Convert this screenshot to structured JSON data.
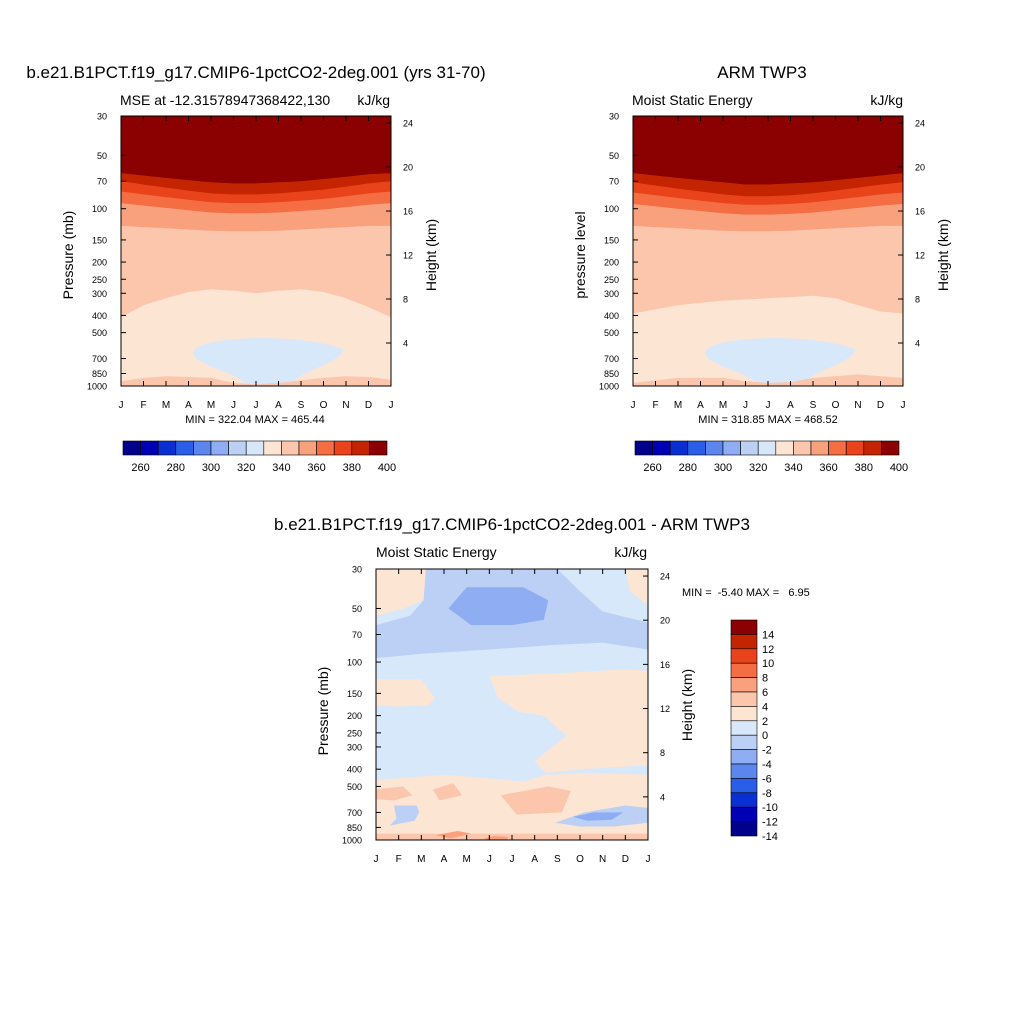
{
  "chart_data": [
    {
      "type": "heatmap",
      "id": "p1",
      "title": "b.e21.B1PCT.f19_g17.CMIP6-1pctCO2-2deg.001 (yrs 31-70)",
      "left_label": "MSE at -12.31578947368422,130",
      "right_label": "kJ/kg",
      "ylabel": "Pressure (mb)",
      "ylabel_right": "Height (km)",
      "minmax": "MIN = 322.04 MAX = 465.44",
      "x_ticks": [
        "J",
        "F",
        "M",
        "A",
        "M",
        "J",
        "J",
        "A",
        "S",
        "O",
        "N",
        "D",
        "J"
      ],
      "p_ticks": [
        "30",
        "50",
        "70",
        "100",
        "150",
        "200",
        "250",
        "300",
        "400",
        "500",
        "700",
        "850",
        "1000"
      ],
      "h_ticks": [
        "24",
        "20",
        "16",
        "12",
        "8",
        "4"
      ],
      "levels": [
        260,
        270,
        280,
        290,
        300,
        310,
        320,
        330,
        340,
        350,
        360,
        370,
        380,
        390,
        400
      ],
      "boundaries": [
        {
          "level": 320,
          "bottom": false,
          "p": [
            845,
            790,
            720,
            650,
            580,
            545,
            535,
            540,
            570,
            620,
            720,
            820,
            845
          ]
        },
        {
          "level": 330,
          "bottom": false,
          "p": [
            940,
            900,
            880,
            890,
            900,
            960,
            980,
            960,
            930,
            900,
            880,
            890,
            920
          ]
        },
        {
          "level": 340,
          "bottom": true,
          "p": [
            410,
            350,
            320,
            295,
            285,
            290,
            300,
            290,
            285,
            295,
            320,
            360,
            410
          ]
        },
        {
          "level": 350,
          "bottom": true,
          "p": [
            125,
            127,
            129,
            131,
            133,
            134,
            134,
            133,
            131,
            129,
            127,
            125,
            125
          ]
        },
        {
          "level": 360,
          "bottom": true,
          "p": [
            93,
            96,
            99,
            102,
            105,
            106,
            106,
            105,
            103,
            101,
            98,
            95,
            93
          ]
        },
        {
          "level": 370,
          "bottom": true,
          "p": [
            80,
            83,
            86,
            89,
            92,
            93,
            93,
            92,
            90,
            88,
            85,
            82,
            80
          ]
        },
        {
          "level": 380,
          "bottom": true,
          "p": [
            70,
            73,
            76,
            79,
            82,
            83,
            83,
            82,
            80,
            78,
            75,
            72,
            70
          ]
        },
        {
          "level": 390,
          "bottom": true,
          "p": [
            63,
            65,
            67,
            69,
            71,
            72,
            72,
            71,
            70,
            68,
            66,
            64,
            63
          ]
        },
        {
          "level": 400,
          "bottom": true,
          "p": [
            57,
            58,
            60,
            61,
            62,
            63,
            63,
            62,
            61,
            60,
            59,
            58,
            57
          ]
        }
      ],
      "colorbar_labels": [
        "260",
        "280",
        "300",
        "320",
        "340",
        "360",
        "380",
        "400"
      ]
    },
    {
      "type": "heatmap",
      "id": "p2",
      "title": "ARM TWP3",
      "left_label": "Moist Static Energy",
      "right_label": "kJ/kg",
      "ylabel": "pressure level",
      "ylabel_right": "Height (km)",
      "minmax": "MIN = 318.85 MAX = 468.52",
      "x_ticks": [
        "J",
        "F",
        "M",
        "A",
        "M",
        "J",
        "J",
        "A",
        "S",
        "O",
        "N",
        "D",
        "J"
      ],
      "p_ticks": [
        "30",
        "50",
        "70",
        "100",
        "150",
        "200",
        "250",
        "300",
        "400",
        "500",
        "700",
        "850",
        "1000"
      ],
      "h_ticks": [
        "24",
        "20",
        "16",
        "12",
        "8",
        "4"
      ],
      "levels": [
        260,
        270,
        280,
        290,
        300,
        310,
        320,
        330,
        340,
        350,
        360,
        370,
        380,
        390,
        400
      ],
      "boundaries": [
        {
          "level": 320,
          "bottom": false,
          "p": [
            800,
            740,
            680,
            630,
            600,
            590,
            595,
            610,
            640,
            700,
            790,
            870,
            800
          ]
        },
        {
          "level": 330,
          "bottom": false,
          "p": [
            960,
            930,
            900,
            900,
            900,
            940,
            960,
            950,
            900,
            880,
            860,
            880,
            900
          ]
        },
        {
          "level": 340,
          "bottom": true,
          "p": [
            390,
            370,
            350,
            340,
            330,
            325,
            320,
            315,
            310,
            320,
            350,
            380,
            390
          ]
        },
        {
          "level": 350,
          "bottom": true,
          "p": [
            125,
            127,
            129,
            131,
            133,
            134,
            134,
            133,
            131,
            129,
            127,
            125,
            125
          ]
        },
        {
          "level": 360,
          "bottom": true,
          "p": [
            94,
            97,
            100,
            103,
            106,
            108,
            108,
            107,
            105,
            102,
            99,
            96,
            94
          ]
        },
        {
          "level": 370,
          "bottom": true,
          "p": [
            81,
            84,
            87,
            90,
            93,
            95,
            95,
            94,
            92,
            89,
            86,
            83,
            81
          ]
        },
        {
          "level": 380,
          "bottom": true,
          "p": [
            71,
            74,
            77,
            80,
            83,
            85,
            85,
            84,
            82,
            79,
            76,
            73,
            71
          ]
        },
        {
          "level": 390,
          "bottom": true,
          "p": [
            63,
            65,
            67,
            69,
            71,
            73,
            73,
            72,
            71,
            69,
            67,
            65,
            63
          ]
        },
        {
          "level": 400,
          "bottom": true,
          "p": [
            57,
            58,
            60,
            61,
            62,
            63,
            63,
            62,
            61,
            60,
            59,
            58,
            57
          ]
        }
      ],
      "colorbar_labels": [
        "260",
        "280",
        "300",
        "320",
        "340",
        "360",
        "380",
        "400"
      ]
    },
    {
      "type": "heatmap",
      "id": "p3",
      "title": "b.e21.B1PCT.f19_g17.CMIP6-1pctCO2-2deg.001 - ARM TWP3",
      "left_label": "Moist Static Energy",
      "right_label": "kJ/kg",
      "ylabel": "Pressure (mb)",
      "ylabel_right": "Height (km)",
      "minmax": "MIN =  -5.40 MAX =   6.95",
      "x_ticks": [
        "J",
        "F",
        "M",
        "A",
        "M",
        "J",
        "J",
        "A",
        "S",
        "O",
        "N",
        "D",
        "J"
      ],
      "p_ticks": [
        "30",
        "50",
        "70",
        "100",
        "150",
        "200",
        "250",
        "300",
        "400",
        "500",
        "700",
        "850",
        "1000"
      ],
      "h_ticks": [
        "24",
        "20",
        "16",
        "12",
        "8",
        "4"
      ],
      "levels": [
        -14,
        -12,
        -10,
        -8,
        -6,
        -4,
        -2,
        0,
        2,
        4,
        6,
        8,
        10,
        12,
        14
      ],
      "colorbar_labels": [
        "14",
        "12",
        "10",
        "8",
        "6",
        "4",
        "2",
        "0",
        "-2",
        "-4",
        "-6",
        "-8",
        "-10",
        "-12",
        "-14"
      ]
    }
  ],
  "colors": {
    "mse_fills": [
      "#00008b",
      "#0000b5",
      "#0a2fd2",
      "#2a5ee8",
      "#5a86ee",
      "#8eadf2",
      "#bcd0f5",
      "#d8e8fb",
      "#fde5d4",
      "#fcc6ad",
      "#f9a07c",
      "#f46d43",
      "#e8431b",
      "#c42400",
      "#8b0000"
    ],
    "diff_fills": [
      "#00008b",
      "#0000b5",
      "#0a2fd2",
      "#2a5ee8",
      "#5a86ee",
      "#8eadf2",
      "#bcd0f5",
      "#d8e8fb",
      "#fde5d4",
      "#fcc6ad",
      "#f9a07c",
      "#f46d43",
      "#e8431b",
      "#c42400",
      "#8b0000"
    ]
  }
}
